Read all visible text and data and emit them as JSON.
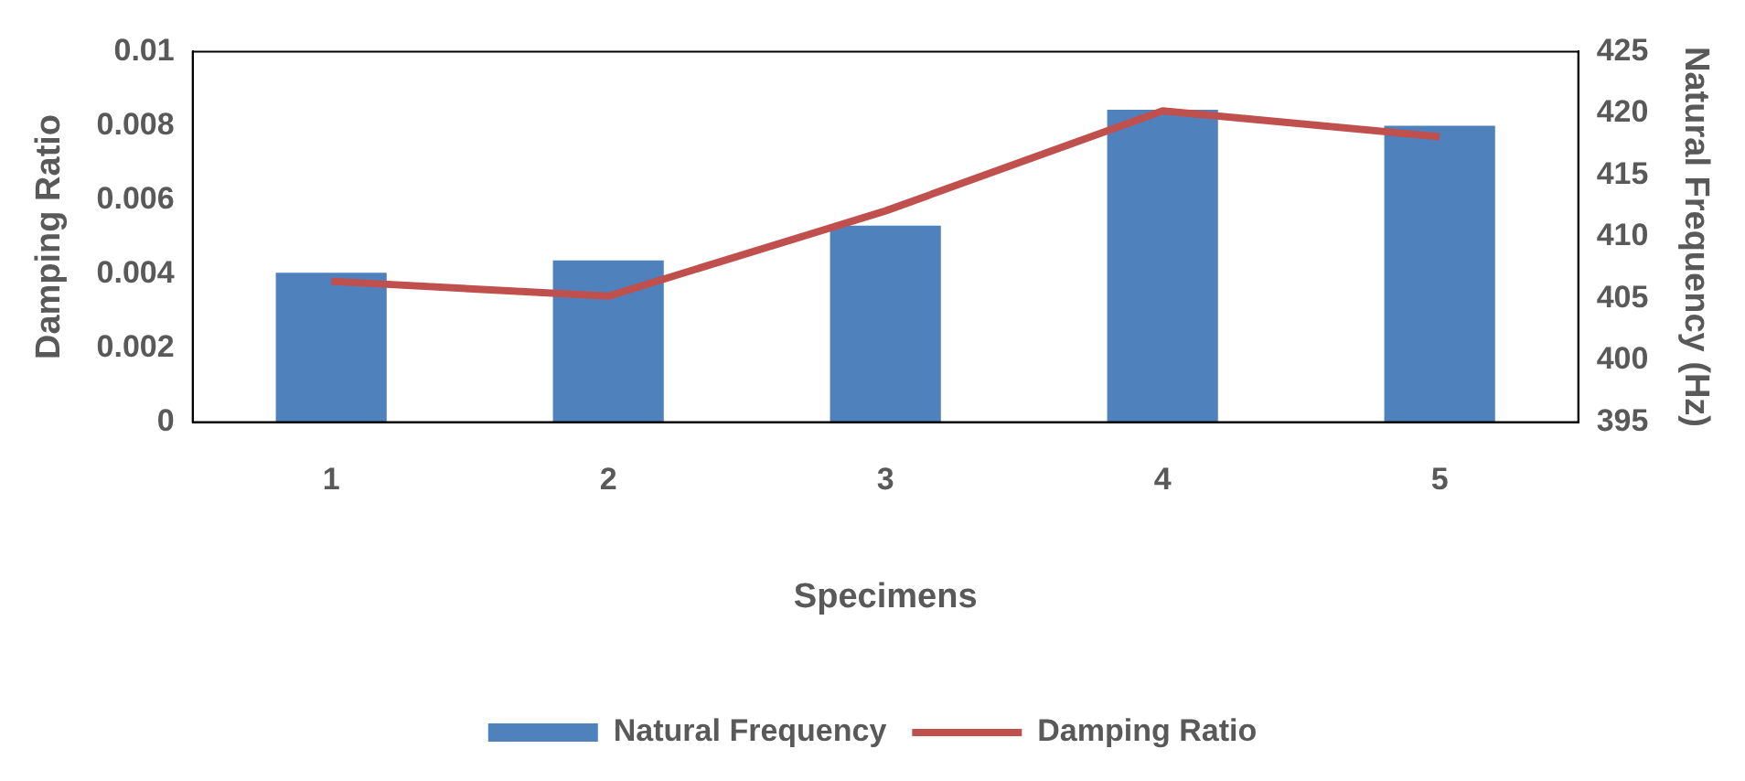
{
  "chart_data": {
    "type": "bar",
    "categories": [
      "1",
      "2",
      "3",
      "4",
      "5"
    ],
    "xlabel": "Specimens",
    "ylabel": "Damping Ratio",
    "y2label": "Natural Frequency (Hz)",
    "series": [
      {
        "name": "Natural Frequency",
        "axis": "y2",
        "color": "#4f81bd",
        "values": [
          407.1,
          408.1,
          410.9,
          420.3,
          419
        ]
      },
      {
        "name": "Damping Ratio",
        "type": "line",
        "axis": "y",
        "color": "#c0504d",
        "values": [
          0.0038,
          0.0034,
          0.0057,
          0.0084,
          0.0077
        ]
      }
    ],
    "ylim": [
      0,
      0.01
    ],
    "yticks": [
      0,
      0.002,
      0.004,
      0.006,
      0.008,
      0.01
    ],
    "y2lim": [
      395,
      425
    ],
    "y2ticks": [
      395,
      400,
      405,
      410,
      415,
      420,
      425
    ],
    "grid": false,
    "legend": "bottom",
    "marker": "none",
    "line_style": "solid"
  }
}
